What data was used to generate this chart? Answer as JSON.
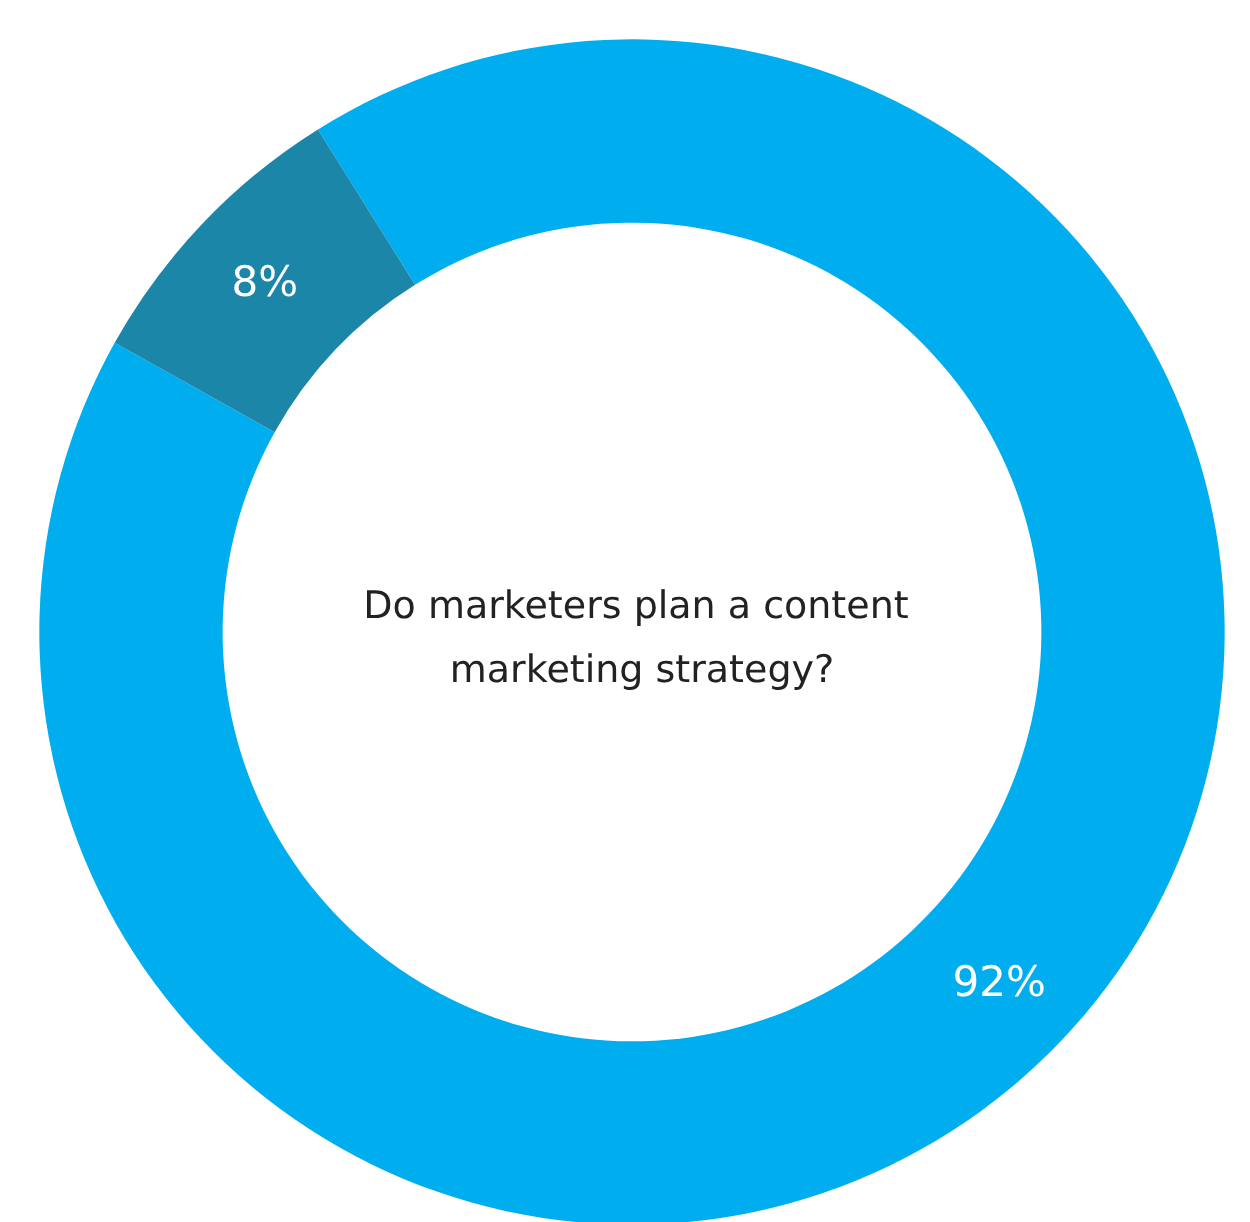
{
  "chart_data": {
    "type": "donut",
    "title": "Do marketers plan a content marketing strategy?",
    "categories": [
      null,
      null
    ],
    "values": [
      92,
      8
    ],
    "colors": [
      "#00aeef",
      "#1b86a8"
    ],
    "value_labels": [
      "92%",
      "8%"
    ]
  }
}
